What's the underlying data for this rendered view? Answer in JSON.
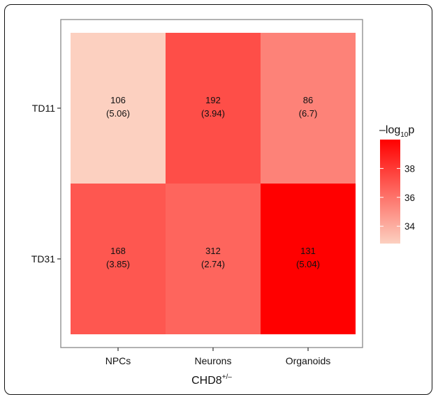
{
  "chart_data": {
    "type": "heatmap",
    "x_categories": [
      "NPCs",
      "Neurons",
      "Organoids"
    ],
    "y_categories": [
      "TD11",
      "TD31"
    ],
    "xlabel": "CHD8",
    "xlabel_superscript": "+/–",
    "ylabel": "",
    "cells": [
      {
        "x": "NPCs",
        "y": "TD11",
        "count": "106",
        "paren": "(5.06)",
        "neglog10p": 32.8
      },
      {
        "x": "Neurons",
        "y": "TD11",
        "count": "192",
        "paren": "(3.94)",
        "neglog10p": 37.3
      },
      {
        "x": "Organoids",
        "y": "TD11",
        "count": "86",
        "paren": "(6.7)",
        "neglog10p": 35.5
      },
      {
        "x": "NPCs",
        "y": "TD31",
        "count": "168",
        "paren": "(3.85)",
        "neglog10p": 37.0
      },
      {
        "x": "Neurons",
        "y": "TD31",
        "count": "312",
        "paren": "(2.74)",
        "neglog10p": 36.5
      },
      {
        "x": "Organoids",
        "y": "TD31",
        "count": "131",
        "paren": "(5.04)",
        "neglog10p": 40.0
      }
    ],
    "legend": {
      "title_prefix": "–log",
      "title_subscript": "10",
      "title_suffix": "p",
      "ticks": [
        34,
        36,
        38
      ],
      "range": [
        32.8,
        40.0
      ],
      "low_color": "#fcd0c0",
      "high_color": "#ff0000"
    },
    "panel_border_color": "#888888",
    "grid": false
  }
}
